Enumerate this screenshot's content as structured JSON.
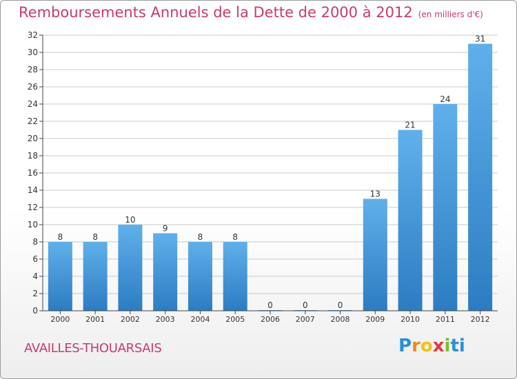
{
  "header": {
    "title": "Remboursements Annuels de la Dette de 2000 à 2012",
    "unit": "(en milliers d'€)"
  },
  "footer": {
    "commune": "AVAILLES-THOUARSAIS",
    "logo_letters": [
      "P",
      "r",
      "o",
      "x",
      "i",
      "ti"
    ]
  },
  "colors": {
    "title": "#c83a6f",
    "bar_light": "#5fb0ea",
    "bar_dark": "#2c7cc2",
    "grid": "#c8c8c8"
  },
  "chart_data": {
    "type": "bar",
    "title": "Remboursements Annuels de la Dette de 2000 à 2012",
    "xlabel": "",
    "ylabel": "",
    "categories": [
      "2000",
      "2001",
      "2002",
      "2003",
      "2004",
      "2005",
      "2006",
      "2007",
      "2008",
      "2009",
      "2010",
      "2011",
      "2012"
    ],
    "values": [
      8,
      8,
      10,
      9,
      8,
      8,
      0,
      0,
      0,
      13,
      21,
      24,
      31
    ],
    "ylim": [
      0,
      32
    ],
    "yticks": [
      0,
      2,
      4,
      6,
      8,
      10,
      12,
      14,
      16,
      18,
      20,
      22,
      24,
      26,
      28,
      30,
      32
    ],
    "grid": true,
    "data_labels": true
  }
}
